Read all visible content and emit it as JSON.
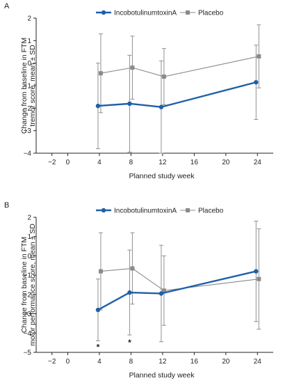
{
  "chart_data": [
    {
      "type": "line",
      "panel_label": "A",
      "xlabel": "Planned study week",
      "ylabel_lines": [
        "Change from baseline in FTM",
        "tremor score, mean ± SD"
      ],
      "xlim": [
        -4,
        26
      ],
      "ylim": [
        -4,
        2
      ],
      "xticks": [
        -2,
        0,
        4,
        8,
        12,
        16,
        20,
        24
      ],
      "yticks": [
        -4,
        -3,
        -2,
        -1,
        0,
        1,
        2
      ],
      "legend_position": "top",
      "series": [
        {
          "name": "IncobotulinumtoxinA",
          "color": "#1f5fa8",
          "marker": "circle",
          "x": [
            4,
            8,
            12,
            24
          ],
          "y": [
            -1.9,
            -1.8,
            -1.95,
            -0.85
          ],
          "sd": [
            1.9,
            2.15,
            2.05,
            1.65
          ]
        },
        {
          "name": "Placebo",
          "color": "#8a8a8a",
          "marker": "square",
          "x": [
            4,
            8,
            12,
            24
          ],
          "y": [
            -0.45,
            -0.2,
            -0.6,
            0.3
          ],
          "sd": [
            1.75,
            1.4,
            1.25,
            1.4
          ]
        }
      ],
      "annotations": []
    },
    {
      "type": "line",
      "panel_label": "B",
      "xlabel": "Planned study week",
      "ylabel_lines": [
        "Change from baseline in FTM",
        "motor performance score, mean ± SD"
      ],
      "xlim": [
        -4,
        26
      ],
      "ylim": [
        -5,
        2
      ],
      "xticks": [
        -2,
        0,
        4,
        8,
        12,
        16,
        20,
        24
      ],
      "yticks": [
        -5,
        -4,
        -3,
        -2,
        -1,
        0,
        1,
        2
      ],
      "legend_position": "top",
      "series": [
        {
          "name": "IncobotulinumtoxinA",
          "color": "#1f5fa8",
          "marker": "circle",
          "x": [
            4,
            8,
            12,
            24
          ],
          "y": [
            -2.8,
            -1.9,
            -1.95,
            -0.8
          ],
          "sd": [
            1.6,
            2.2,
            2.5,
            2.6
          ]
        },
        {
          "name": "Placebo",
          "color": "#8a8a8a",
          "marker": "square",
          "x": [
            4,
            8,
            12,
            24
          ],
          "y": [
            -0.8,
            -0.65,
            -1.8,
            -1.2
          ],
          "sd": [
            2.0,
            1.85,
            1.8,
            2.6
          ]
        }
      ],
      "annotations": [
        {
          "text": "*",
          "x": 4,
          "y": -4.7
        },
        {
          "text": "*",
          "x": 8,
          "y": -4.45
        }
      ]
    }
  ]
}
